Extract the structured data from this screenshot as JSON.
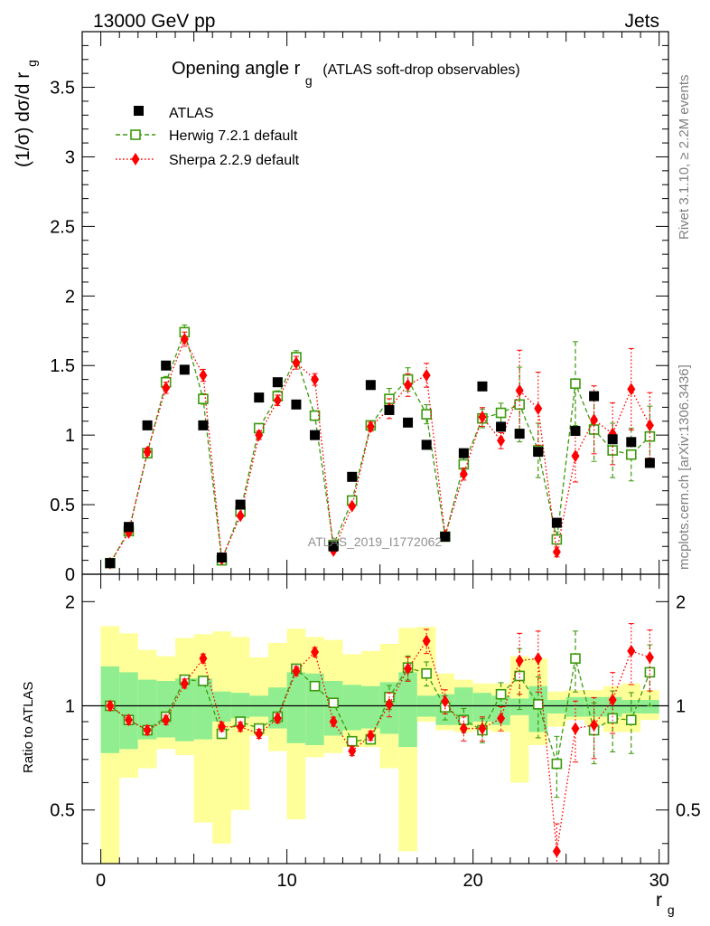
{
  "header": {
    "left_label": "13000 GeV pp",
    "right_label": "Jets"
  },
  "side_labels": {
    "rivet": "Rivet 3.1.10, ≥ 2.2M events",
    "mcplots": "mcplots.cern.ch [arXiv:1306.3436]"
  },
  "watermark": "ATLAS_2019_I1772062",
  "chart_data": [
    {
      "type": "scatter",
      "title_main": "Opening angle r",
      "title_sub": "g",
      "title_rest": "(ATLAS soft-drop observables)",
      "ylabel": "(1/σ) dσ/d r",
      "ylabel_sub": "g",
      "ylim": [
        0,
        3.9
      ],
      "yticks": [
        0,
        0.5,
        1,
        1.5,
        2,
        2.5,
        3,
        3.5
      ],
      "ytick_labels": [
        "0",
        "0.5",
        "1",
        "1.5",
        "2",
        "2.5",
        "3",
        "3.5"
      ],
      "xlim": [
        -1,
        30.5
      ],
      "legend_placement": "top-left",
      "series": [
        {
          "name": "ATLAS",
          "color": "#000000",
          "marker": "square-filled",
          "x": [
            0.5,
            1.5,
            2.5,
            3.5,
            4.5,
            5.5,
            6.5,
            7.5,
            8.5,
            9.5,
            10.5,
            11.5,
            12.5,
            13.5,
            14.5,
            15.5,
            16.5,
            17.5,
            18.5,
            19.5,
            20.5,
            21.5,
            22.5,
            23.5,
            24.5,
            25.5,
            26.5,
            27.5,
            28.5,
            29.5
          ],
          "values": [
            0.08,
            0.34,
            1.07,
            1.5,
            1.47,
            1.07,
            0.12,
            0.5,
            1.27,
            1.38,
            1.22,
            1.0,
            0.2,
            0.7,
            1.36,
            1.18,
            1.09,
            0.93,
            0.27,
            0.87,
            1.35,
            1.06,
            1.01,
            0.88,
            0.37,
            1.03,
            1.28,
            0.97,
            0.95,
            0.8
          ]
        },
        {
          "name": "Herwig 7.2.1 default",
          "color": "#3a9a0a",
          "marker": "square-open",
          "x": [
            0.5,
            1.5,
            2.5,
            3.5,
            4.5,
            5.5,
            6.5,
            7.5,
            8.5,
            9.5,
            10.5,
            11.5,
            12.5,
            13.5,
            14.5,
            15.5,
            16.5,
            17.5,
            18.5,
            19.5,
            20.5,
            21.5,
            22.5,
            23.5,
            24.5,
            25.5,
            26.5,
            27.5,
            28.5,
            29.5
          ],
          "values": [
            0.08,
            0.31,
            0.87,
            1.38,
            1.74,
            1.26,
            0.1,
            0.45,
            1.05,
            1.28,
            1.56,
            1.14,
            0.21,
            0.53,
            1.07,
            1.26,
            1.4,
            1.15,
            0.27,
            0.79,
            1.12,
            1.16,
            1.22,
            0.89,
            0.25,
            1.37,
            1.04,
            0.89,
            0.86,
            0.99
          ]
        },
        {
          "name": "Sherpa 2.2.9 default",
          "color": "#ff0000",
          "marker": "diamond-filled",
          "x": [
            0.5,
            1.5,
            2.5,
            3.5,
            4.5,
            5.5,
            6.5,
            7.5,
            8.5,
            9.5,
            10.5,
            11.5,
            12.5,
            13.5,
            14.5,
            15.5,
            16.5,
            17.5,
            18.5,
            19.5,
            20.5,
            21.5,
            22.5,
            23.5,
            24.5,
            25.5,
            26.5,
            27.5,
            28.5,
            29.5
          ],
          "values": [
            0.08,
            0.3,
            0.88,
            1.34,
            1.69,
            1.43,
            0.11,
            0.42,
            1.0,
            1.25,
            1.52,
            1.4,
            0.17,
            0.49,
            1.06,
            1.19,
            1.36,
            1.43,
            0.28,
            0.72,
            1.13,
            0.96,
            1.32,
            1.19,
            0.16,
            0.85,
            1.11,
            1.01,
            1.33,
            1.07
          ]
        }
      ]
    },
    {
      "type": "scatter",
      "ylabel": "Ratio to ATLAS",
      "xlabel": "r",
      "xlabel_sub": "g",
      "ylim": [
        0.35,
        2.4
      ],
      "yticks": [
        0.5,
        1,
        2
      ],
      "ytick_labels": [
        "0.5",
        "1",
        "2"
      ],
      "xlim": [
        -1,
        30.5
      ],
      "xticks": [
        0,
        10,
        20,
        30
      ],
      "xtick_labels": [
        "0",
        "10",
        "20",
        "30"
      ],
      "reference_line": 1,
      "bins": [
        0,
        1,
        2,
        3,
        4,
        5,
        6,
        7,
        8,
        9,
        10,
        11,
        12,
        13,
        14,
        15,
        16,
        17,
        18,
        19,
        20,
        21,
        22,
        23,
        24,
        25,
        26,
        27,
        28,
        29,
        30
      ],
      "band_inner": {
        "color": "#90ee90",
        "low": [
          0.73,
          0.75,
          0.8,
          0.81,
          0.79,
          0.8,
          0.9,
          0.92,
          0.93,
          0.86,
          0.78,
          0.77,
          0.82,
          0.85,
          0.86,
          0.83,
          0.76,
          0.93,
          0.88,
          0.88,
          0.9,
          0.88,
          0.94,
          0.84,
          0.95,
          0.93,
          0.93,
          0.93,
          0.95,
          0.95
        ],
        "high": [
          1.3,
          1.25,
          1.19,
          1.18,
          1.2,
          1.2,
          1.1,
          1.09,
          1.07,
          1.13,
          1.25,
          1.24,
          1.18,
          1.15,
          1.14,
          1.17,
          1.25,
          1.07,
          1.08,
          1.13,
          1.09,
          1.07,
          1.05,
          1.14,
          1.04,
          1.06,
          1.06,
          1.06,
          1.04,
          1.04
        ]
      },
      "band_outer": {
        "color": "#ffff99",
        "low": [
          0.35,
          0.62,
          0.66,
          0.75,
          0.72,
          0.46,
          0.4,
          0.5,
          0.82,
          0.74,
          0.47,
          0.71,
          0.73,
          0.76,
          0.76,
          0.66,
          0.38,
          0.9,
          0.85,
          0.84,
          0.85,
          0.84,
          0.6,
          0.77,
          0.87,
          0.91,
          0.88,
          0.84,
          0.84,
          0.91
        ],
        "high": [
          1.7,
          1.62,
          1.45,
          1.39,
          1.57,
          1.61,
          1.64,
          1.58,
          1.38,
          1.52,
          1.67,
          1.58,
          1.55,
          1.41,
          1.44,
          1.51,
          1.68,
          1.69,
          1.24,
          1.19,
          1.16,
          1.16,
          1.39,
          1.37,
          1.1,
          1.11,
          1.11,
          1.14,
          1.16,
          1.11
        ]
      },
      "series": [
        {
          "name": "Herwig 7.2.1 default",
          "color": "#3a9a0a",
          "marker": "square-open",
          "x": [
            0.5,
            1.5,
            2.5,
            3.5,
            4.5,
            5.5,
            6.5,
            7.5,
            8.5,
            9.5,
            10.5,
            11.5,
            12.5,
            13.5,
            14.5,
            15.5,
            16.5,
            17.5,
            18.5,
            19.5,
            20.5,
            21.5,
            22.5,
            23.5,
            24.5,
            25.5,
            26.5,
            27.5,
            28.5,
            29.5
          ],
          "values": [
            1.0,
            0.91,
            0.85,
            0.93,
            1.19,
            1.18,
            0.83,
            0.9,
            0.86,
            0.93,
            1.28,
            1.14,
            1.02,
            0.79,
            0.8,
            1.06,
            1.29,
            1.24,
            0.99,
            0.91,
            0.85,
            1.08,
            1.22,
            1.01,
            0.68,
            1.37,
            0.85,
            0.92,
            0.91,
            1.25
          ]
        },
        {
          "name": "Sherpa 2.2.9 default",
          "color": "#ff0000",
          "marker": "diamond-filled",
          "x": [
            0.5,
            1.5,
            2.5,
            3.5,
            4.5,
            5.5,
            6.5,
            7.5,
            8.5,
            9.5,
            10.5,
            11.5,
            12.5,
            13.5,
            14.5,
            15.5,
            16.5,
            17.5,
            18.5,
            19.5,
            20.5,
            21.5,
            22.5,
            23.5,
            24.5,
            25.5,
            26.5,
            27.5,
            28.5,
            29.5
          ],
          "values": [
            1.0,
            0.91,
            0.85,
            0.91,
            1.16,
            1.37,
            0.87,
            0.87,
            0.83,
            0.92,
            1.26,
            1.43,
            0.9,
            0.74,
            0.82,
            1.01,
            1.28,
            1.54,
            1.03,
            0.86,
            0.86,
            0.92,
            1.35,
            1.37,
            0.38,
            0.86,
            0.88,
            1.04,
            1.44,
            1.38
          ]
        }
      ]
    }
  ]
}
